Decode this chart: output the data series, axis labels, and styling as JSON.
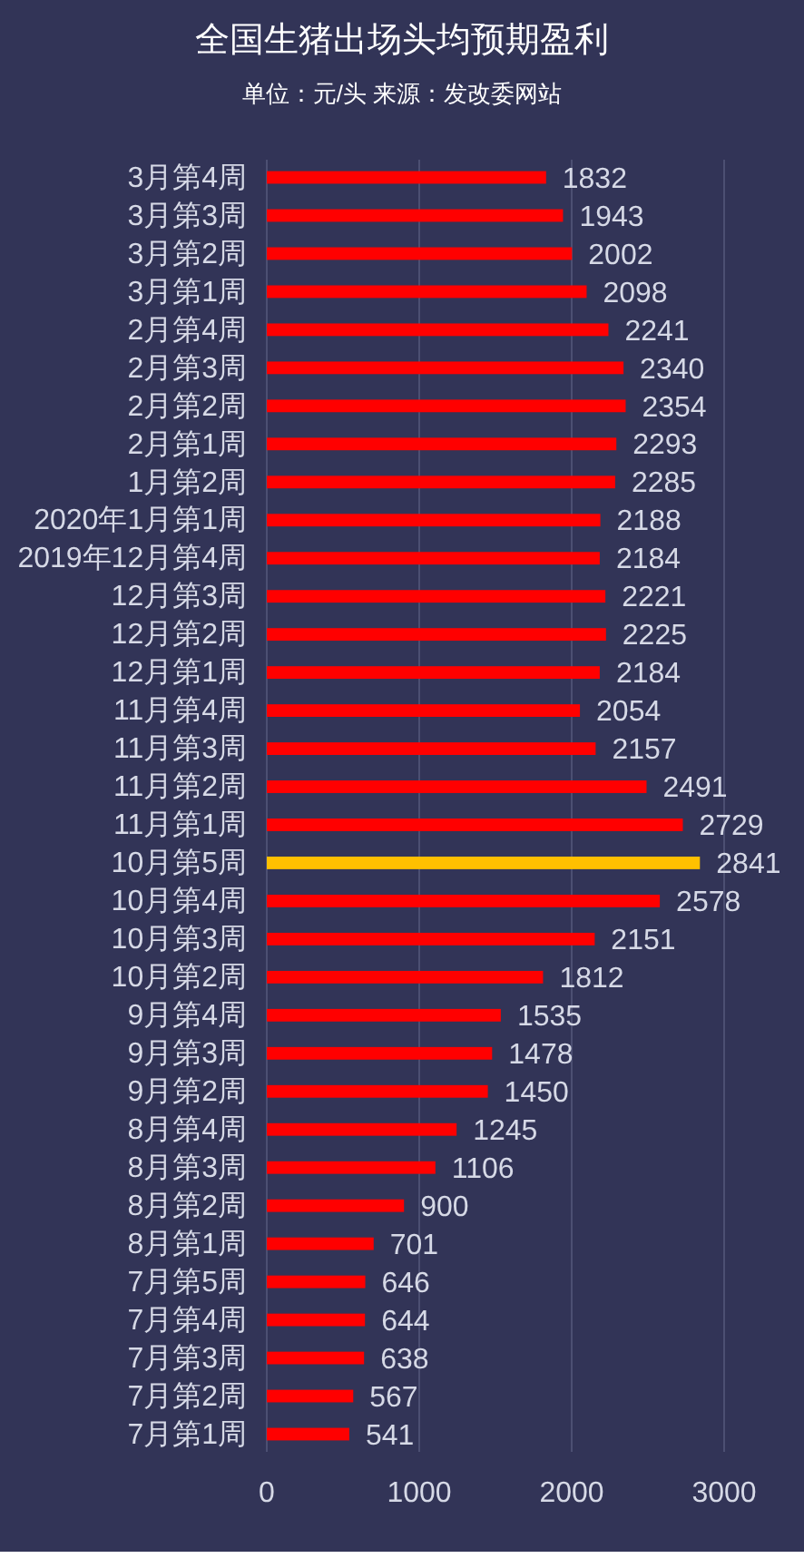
{
  "chart_data": {
    "type": "bar",
    "orientation": "horizontal",
    "title": "全国生猪出场头均预期盈利",
    "subtitle": "单位：元/头 来源：发改委网站",
    "categories": [
      "3月第4周",
      "3月第3周",
      "3月第2周",
      "3月第1周",
      "2月第4周",
      "2月第3周",
      "2月第2周",
      "2月第1周",
      "1月第2周",
      "2020年1月第1周",
      "2019年12月第4周",
      "12月第3周",
      "12月第2周",
      "12月第1周",
      "11月第4周",
      "11月第3周",
      "11月第2周",
      "11月第1周",
      "10月第5周",
      "10月第4周",
      "10月第3周",
      "10月第2周",
      "9月第4周",
      "9月第3周",
      "9月第2周",
      "8月第4周",
      "8月第3周",
      "8月第2周",
      "8月第1周",
      "7月第5周",
      "7月第4周",
      "7月第3周",
      "7月第2周",
      "7月第1周"
    ],
    "values": [
      1832,
      1943,
      2002,
      2098,
      2241,
      2340,
      2354,
      2293,
      2285,
      2188,
      2184,
      2221,
      2225,
      2184,
      2054,
      2157,
      2491,
      2729,
      2841,
      2578,
      2151,
      1812,
      1535,
      1478,
      1450,
      1245,
      1106,
      900,
      701,
      646,
      644,
      638,
      567,
      541
    ],
    "colors": [
      "#ff0000",
      "#ff0000",
      "#ff0000",
      "#ff0000",
      "#ff0000",
      "#ff0000",
      "#ff0000",
      "#ff0000",
      "#ff0000",
      "#ff0000",
      "#ff0000",
      "#ff0000",
      "#ff0000",
      "#ff0000",
      "#ff0000",
      "#ff0000",
      "#ff0000",
      "#ff0000",
      "#ffc000",
      "#ff0000",
      "#ff0000",
      "#ff0000",
      "#ff0000",
      "#ff0000",
      "#ff0000",
      "#ff0000",
      "#ff0000",
      "#ff0000",
      "#ff0000",
      "#ff0000",
      "#ff0000",
      "#ff0000",
      "#ff0000",
      "#ff0000"
    ],
    "xlim": [
      0,
      3000
    ],
    "xticks": [
      0,
      1000,
      2000,
      3000
    ],
    "grid": "x",
    "data_labels": true
  }
}
